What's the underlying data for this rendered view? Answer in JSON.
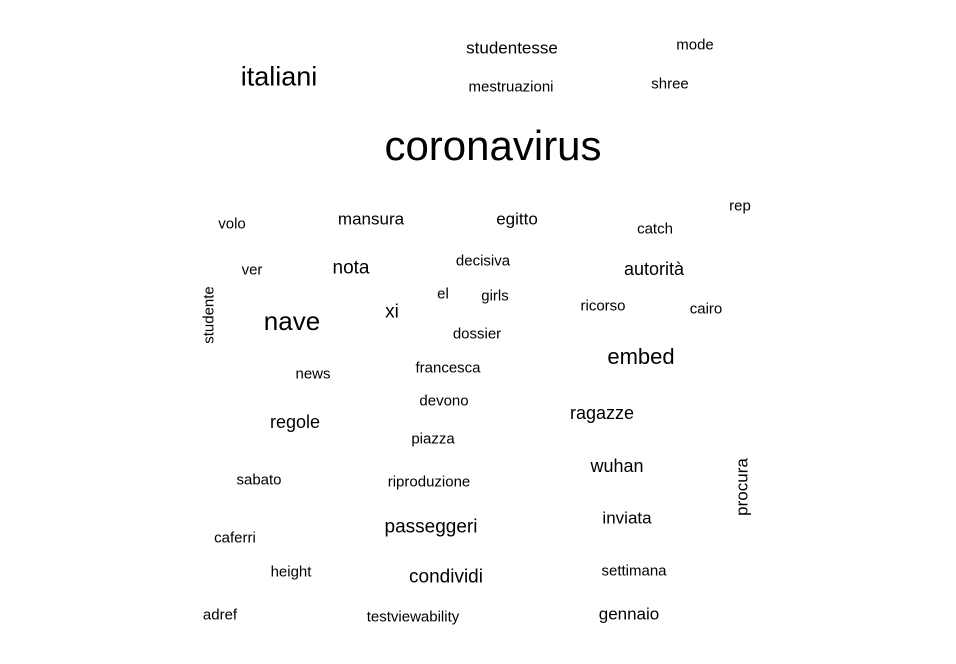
{
  "words": [
    {
      "text": "coronavirus"
    },
    {
      "text": "italiani"
    },
    {
      "text": "studentesse"
    },
    {
      "text": "mode"
    },
    {
      "text": "mestruazioni"
    },
    {
      "text": "shree"
    },
    {
      "text": "rep"
    },
    {
      "text": "volo"
    },
    {
      "text": "mansura"
    },
    {
      "text": "egitto"
    },
    {
      "text": "catch"
    },
    {
      "text": "ver"
    },
    {
      "text": "nota"
    },
    {
      "text": "decisiva"
    },
    {
      "text": "autorità"
    },
    {
      "text": "studente"
    },
    {
      "text": "el"
    },
    {
      "text": "girls"
    },
    {
      "text": "ricorso"
    },
    {
      "text": "cairo"
    },
    {
      "text": "nave"
    },
    {
      "text": "xi"
    },
    {
      "text": "dossier"
    },
    {
      "text": "embed"
    },
    {
      "text": "news"
    },
    {
      "text": "francesca"
    },
    {
      "text": "devono"
    },
    {
      "text": "ragazze"
    },
    {
      "text": "regole"
    },
    {
      "text": "piazza"
    },
    {
      "text": "wuhan"
    },
    {
      "text": "procura"
    },
    {
      "text": "sabato"
    },
    {
      "text": "riproduzione"
    },
    {
      "text": "passeggeri"
    },
    {
      "text": "inviata"
    },
    {
      "text": "caferri"
    },
    {
      "text": "height"
    },
    {
      "text": "condividi"
    },
    {
      "text": "settimana"
    },
    {
      "text": "adref"
    },
    {
      "text": "testviewability"
    },
    {
      "text": "gennaio"
    }
  ]
}
